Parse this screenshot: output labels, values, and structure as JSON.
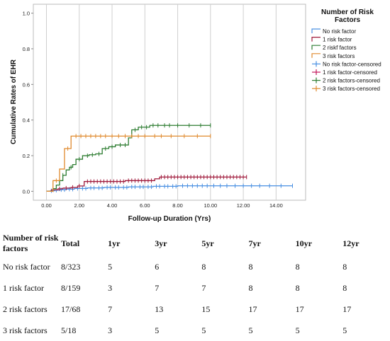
{
  "chart_data": {
    "type": "line",
    "xlabel": "Follow-up Duration (Yrs)",
    "ylabel": "Cumulative Rates of EHR",
    "xlim": [
      -0.8,
      15.8
    ],
    "ylim": [
      -0.05,
      1.05
    ],
    "x_ticks": [
      0,
      2,
      4,
      6,
      8,
      10,
      12,
      14
    ],
    "x_tick_labels": [
      "0.00",
      "2.00",
      "4.00",
      "6.00",
      "8.00",
      "10.00",
      "12.00",
      "14.00"
    ],
    "y_ticks": [
      0,
      0.2,
      0.4,
      0.6,
      0.8,
      1.0
    ],
    "y_tick_labels": [
      "0.0",
      "0.2",
      "0.4",
      "0.6",
      "0.8",
      "1.0"
    ],
    "grid": "vertical",
    "legend": {
      "title": "Number of Risk Factors",
      "placement": "right",
      "entries": [
        {
          "label": "No risk factor",
          "color": "#4a90e2",
          "kind": "step"
        },
        {
          "label": "1 risk factor",
          "color": "#a01b3c",
          "kind": "step"
        },
        {
          "label": "2 riskf factors",
          "color": "#2e7d32",
          "kind": "step"
        },
        {
          "label": "3 risk factors",
          "color": "#e08a2e",
          "kind": "step"
        },
        {
          "label": "No risk factor-censored",
          "color": "#4a90e2",
          "kind": "censor"
        },
        {
          "label": "1 risk factor-censored",
          "color": "#c2185b",
          "kind": "censor"
        },
        {
          "label": "2 risk factors-censored",
          "color": "#2e7d32",
          "kind": "censor"
        },
        {
          "label": "3 risk factors-censored",
          "color": "#e08a2e",
          "kind": "censor"
        }
      ]
    },
    "series": [
      {
        "name": "No risk factor",
        "color": "#4a90e2",
        "x": [
          0,
          0.25,
          0.5,
          0.8,
          1.2,
          1.7,
          2.5,
          3.5,
          5.0,
          6.5,
          8.0
        ],
        "y": [
          0,
          0.003,
          0.006,
          0.009,
          0.012,
          0.016,
          0.019,
          0.022,
          0.025,
          0.028,
          0.031
        ],
        "end_x": 15.0,
        "censored_x": [
          0.3,
          0.6,
          0.9,
          1.1,
          1.4,
          1.6,
          1.9,
          2.2,
          2.4,
          2.7,
          2.9,
          3.2,
          3.4,
          3.7,
          3.9,
          4.2,
          4.4,
          4.7,
          4.9,
          5.2,
          5.4,
          5.7,
          5.9,
          6.2,
          6.4,
          6.7,
          6.9,
          7.2,
          7.4,
          7.7,
          7.9,
          8.3,
          8.6,
          8.9,
          9.2,
          9.5,
          9.8,
          10.2,
          10.6,
          11.0,
          11.5,
          12.0,
          12.5,
          13.0,
          13.6,
          14.3,
          15.0
        ]
      },
      {
        "name": "1 risk factor",
        "color": "#a01b3c",
        "x": [
          0,
          0.3,
          0.7,
          1.0,
          1.5,
          1.9,
          2.3,
          4.8,
          6.6,
          6.9
        ],
        "y": [
          0,
          0.008,
          0.014,
          0.018,
          0.022,
          0.03,
          0.055,
          0.06,
          0.07,
          0.08
        ],
        "end_x": 12.2,
        "censored_x": [
          0.4,
          0.8,
          1.2,
          1.6,
          2.0,
          2.5,
          2.7,
          2.9,
          3.1,
          3.3,
          3.5,
          3.7,
          3.9,
          4.1,
          4.3,
          4.5,
          4.7,
          5.0,
          5.2,
          5.4,
          5.6,
          5.8,
          6.0,
          6.2,
          6.4,
          7.0,
          7.2,
          7.4,
          7.6,
          7.8,
          8.0,
          8.2,
          8.4,
          8.6,
          8.8,
          9.0,
          9.2,
          9.4,
          9.6,
          9.8,
          10.0,
          10.2,
          10.4,
          10.6,
          10.8,
          11.0,
          11.2,
          11.4,
          11.6,
          11.8,
          12.0,
          12.2
        ]
      },
      {
        "name": "2 riskf factors",
        "color": "#2e7d32",
        "x": [
          0,
          0.4,
          0.6,
          0.8,
          1.0,
          1.2,
          1.4,
          1.6,
          1.8,
          2.2,
          2.6,
          3.0,
          3.4,
          3.8,
          4.2,
          5.0,
          5.2,
          5.6,
          6.3
        ],
        "y": [
          0,
          0.015,
          0.035,
          0.06,
          0.09,
          0.12,
          0.135,
          0.15,
          0.18,
          0.2,
          0.205,
          0.21,
          0.24,
          0.25,
          0.26,
          0.3,
          0.345,
          0.36,
          0.37
        ],
        "end_x": 10.0,
        "censored_x": [
          1.0,
          1.5,
          2.0,
          2.5,
          2.8,
          3.2,
          3.6,
          4.0,
          4.5,
          4.8,
          5.4,
          5.8,
          6.1,
          6.5,
          6.8,
          7.2,
          7.5,
          8.0,
          8.7,
          9.4,
          10.0
        ]
      },
      {
        "name": "3 risk factors",
        "color": "#e08a2e",
        "x": [
          0,
          0.4,
          0.8,
          1.1,
          1.5
        ],
        "y": [
          0,
          0.06,
          0.125,
          0.24,
          0.31
        ],
        "end_x": 10.0,
        "censored_x": [
          0.6,
          1.3,
          1.8,
          2.1,
          2.4,
          2.7,
          3.0,
          3.3,
          3.6,
          4.0,
          4.4,
          4.8,
          5.2,
          5.6,
          6.0,
          6.6,
          7.0,
          7.6,
          8.4,
          9.2,
          10.0
        ]
      }
    ]
  },
  "table": {
    "header": {
      "first": "Number of risk factors",
      "total": "Total",
      "years": [
        "1yr",
        "3yr",
        "5yr",
        "7yr",
        "10yr",
        "12yr"
      ]
    },
    "rows": [
      {
        "label": "No risk factor",
        "total": "8/323",
        "values": [
          "5",
          "6",
          "8",
          "8",
          "8",
          "8"
        ]
      },
      {
        "label": "1 risk factor",
        "total": "8/159",
        "values": [
          "3",
          "7",
          "7",
          "8",
          "8",
          "8"
        ]
      },
      {
        "label": "2 risk factors",
        "total": "17/68",
        "values": [
          "7",
          "13",
          "15",
          "17",
          "17",
          "17"
        ]
      },
      {
        "label": "3 risk factors",
        "total": "5/18",
        "values": [
          "3",
          "5",
          "5",
          "5",
          "5",
          "5"
        ]
      }
    ]
  }
}
